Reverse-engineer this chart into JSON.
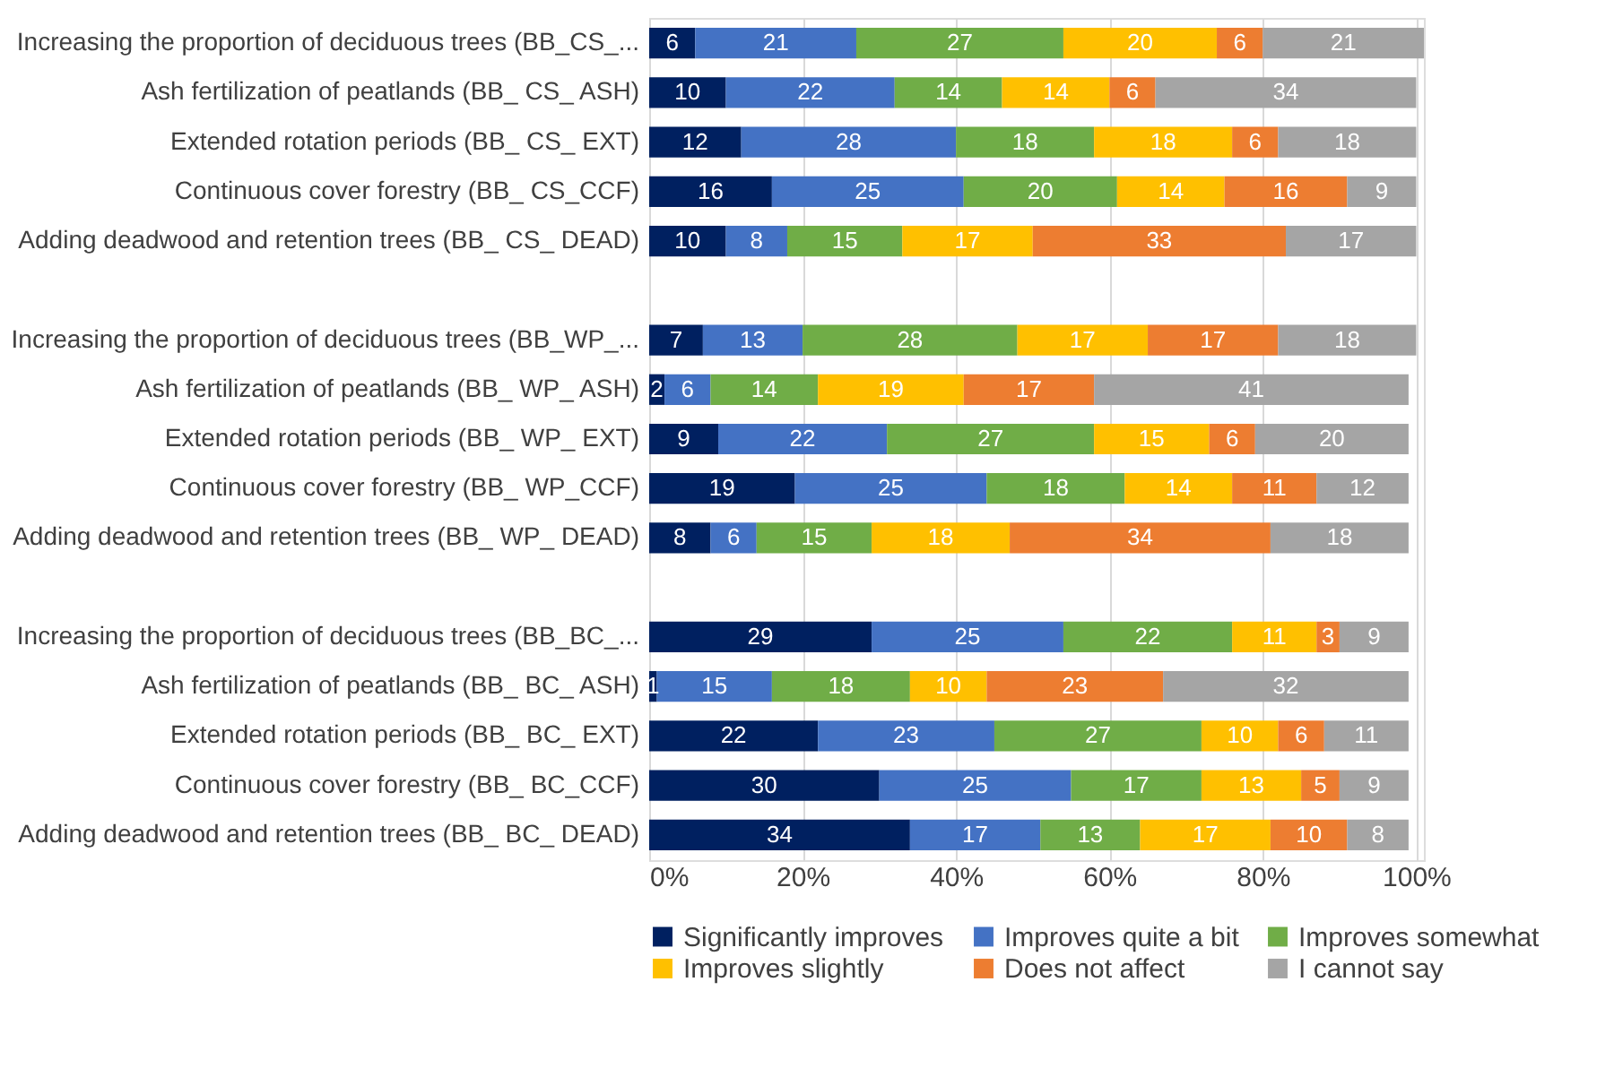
{
  "chart_data": {
    "type": "bar",
    "orientation": "horizontal",
    "stacked": true,
    "data_labels": true,
    "grid": "x",
    "legend": "bottom",
    "categories": [
      "Increasing the proportion of deciduous trees (BB_CS_...",
      "Ash fertilization of peatlands (BB_ CS_ ASH)",
      "Extended rotation periods (BB_ CS_ EXT)",
      "Continuous cover forestry (BB_ CS_CCF)",
      "Adding deadwood and retention trees (BB_ CS_ DEAD)",
      null,
      "Increasing the proportion of deciduous trees (BB_WP_...",
      "Ash fertilization of peatlands (BB_ WP_ ASH)",
      "Extended rotation periods (BB_ WP_ EXT)",
      "Continuous cover forestry (BB_ WP_CCF)",
      "Adding deadwood and retention trees (BB_ WP_ DEAD)",
      null,
      "Increasing the proportion of deciduous trees (BB_BC_...",
      "Ash fertilization of peatlands (BB_ BC_ ASH)",
      "Extended rotation periods (BB_ BC_ EXT)",
      "Continuous cover forestry (BB_ BC_CCF)",
      "Adding deadwood and retention trees (BB_ BC_ DEAD)"
    ],
    "xlim": [
      0,
      101
    ],
    "xticks": [
      {
        "value": 0,
        "label": "0%"
      },
      {
        "value": 20,
        "label": "20%"
      },
      {
        "value": 40,
        "label": "40%"
      },
      {
        "value": 60,
        "label": "60%"
      },
      {
        "value": 80,
        "label": "80%"
      },
      {
        "value": 100,
        "label": "100%"
      }
    ],
    "series": [
      {
        "name": "Significantly improves",
        "color": "#002060",
        "values": [
          6,
          10,
          12,
          16,
          10,
          null,
          7,
          2,
          9,
          19,
          8,
          null,
          29,
          1,
          22,
          30,
          34
        ]
      },
      {
        "name": "Improves quite a bit",
        "color": "#4472c4",
        "values": [
          21,
          22,
          28,
          25,
          8,
          null,
          13,
          6,
          22,
          25,
          6,
          null,
          25,
          15,
          23,
          25,
          17
        ]
      },
      {
        "name": "Improves somewhat",
        "color": "#70ad47",
        "values": [
          27,
          14,
          18,
          20,
          15,
          null,
          28,
          14,
          27,
          18,
          15,
          null,
          22,
          18,
          27,
          17,
          13
        ]
      },
      {
        "name": "Improves slightly",
        "color": "#ffc000",
        "values": [
          20,
          14,
          18,
          14,
          17,
          null,
          17,
          19,
          15,
          14,
          18,
          null,
          11,
          10,
          10,
          13,
          17
        ]
      },
      {
        "name": "Does not affect",
        "color": "#ed7d31",
        "values": [
          6,
          6,
          6,
          16,
          33,
          null,
          17,
          17,
          6,
          11,
          34,
          null,
          3,
          23,
          6,
          5,
          10
        ]
      },
      {
        "name": "I cannot say",
        "color": "#a5a5a5",
        "values": [
          21,
          34,
          18,
          9,
          17,
          null,
          18,
          41,
          20,
          12,
          18,
          null,
          9,
          32,
          11,
          9,
          8
        ]
      }
    ]
  }
}
